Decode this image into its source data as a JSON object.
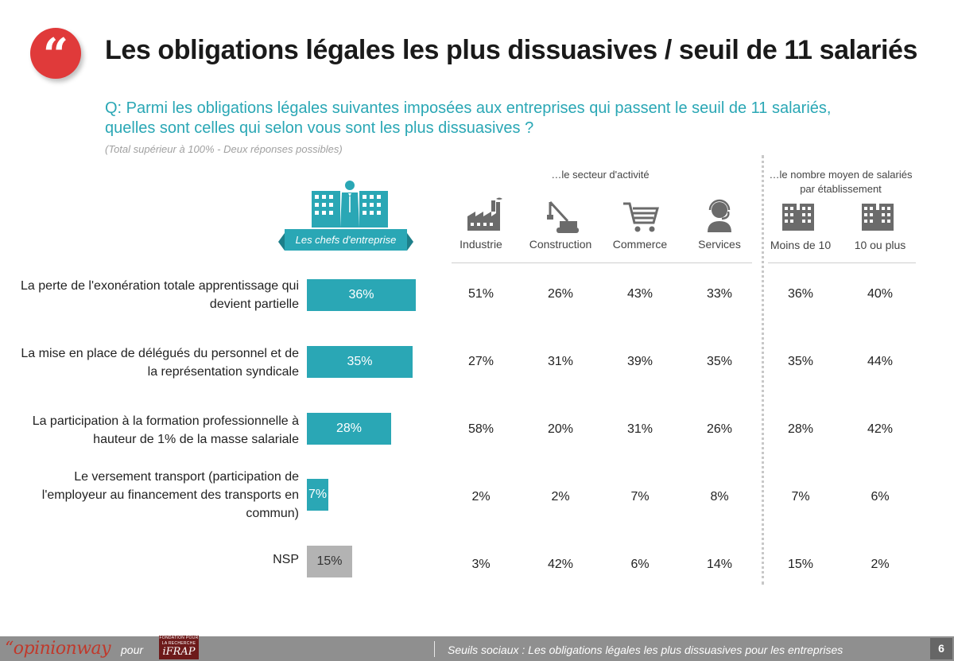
{
  "title": "Les obligations légales les plus dissuasives / seuil de 11 salariés",
  "question": "Q: Parmi les obligations légales suivantes imposées aux entreprises qui passent le seuil de 11 salariés, quelles sont celles qui selon vous sont les plus dissuasives ?",
  "note": "(Total supérieur à 100% - Deux réponses possibles)",
  "group_headers": {
    "sector": "…le secteur d'activité",
    "size": "…le nombre moyen de salariés par établissement"
  },
  "chefs_label": "Les chefs d'entreprise",
  "columns": [
    {
      "label": "Industrie",
      "icon": "factory-icon"
    },
    {
      "label": "Construction",
      "icon": "crane-icon"
    },
    {
      "label": "Commerce",
      "icon": "shopping-cart-icon"
    },
    {
      "label": "Services",
      "icon": "support-agent-icon"
    },
    {
      "label": "Moins de 10",
      "icon": "building-icon"
    },
    {
      "label": "10 ou plus",
      "icon": "building-icon"
    }
  ],
  "rows": [
    {
      "label": "La perte de l'exonération totale apprentissage qui devient partielle",
      "bar_label": "36%",
      "cells": [
        "51%",
        "26%",
        "43%",
        "33%",
        "36%",
        "40%"
      ]
    },
    {
      "label": "La mise en place de délégués du personnel et de la représentation syndicale",
      "bar_label": "35%",
      "cells": [
        "27%",
        "31%",
        "39%",
        "35%",
        "35%",
        "44%"
      ]
    },
    {
      "label": "La participation à la formation professionnelle à hauteur de 1% de la masse salariale",
      "bar_label": "28%",
      "cells": [
        "58%",
        "20%",
        "31%",
        "26%",
        "28%",
        "42%"
      ]
    },
    {
      "label": "Le versement transport (participation de l'employeur au financement des transports en commun)",
      "bar_label": "7%",
      "cells": [
        "2%",
        "2%",
        "7%",
        "8%",
        "7%",
        "6%"
      ]
    },
    {
      "label": "NSP",
      "bar_label": "15%",
      "cells": [
        "3%",
        "42%",
        "6%",
        "14%",
        "15%",
        "2%"
      ]
    }
  ],
  "chart_data": {
    "type": "bar",
    "orientation": "horizontal",
    "categories": [
      "La perte de l'exonération totale apprentissage qui devient partielle",
      "La mise en place de délégués du personnel et de la représentation syndicale",
      "La participation à la formation professionnelle à hauteur de 1% de la masse salariale",
      "Le versement transport (participation de l'employeur au financement des transports en commun)",
      "NSP"
    ],
    "values": [
      36,
      35,
      28,
      7,
      15
    ],
    "unit": "%",
    "colors": [
      "#2aa7b5",
      "#2aa7b5",
      "#2aa7b5",
      "#2aa7b5",
      "#b3b3b3"
    ]
  },
  "colors": {
    "accent": "#2aa7b5",
    "title_badge": "#e03a3a",
    "nsp_bar": "#b3b3b3",
    "footer": "#8f8f8f"
  },
  "footer": {
    "logo": "“opinionway",
    "pour": "pour",
    "partner_small": "FONDATION POUR LA RECHERCHE",
    "partner": "iFRAP",
    "text": "Seuils sociaux : Les obligations légales les plus dissuasives pour les entreprises",
    "page": "6"
  }
}
